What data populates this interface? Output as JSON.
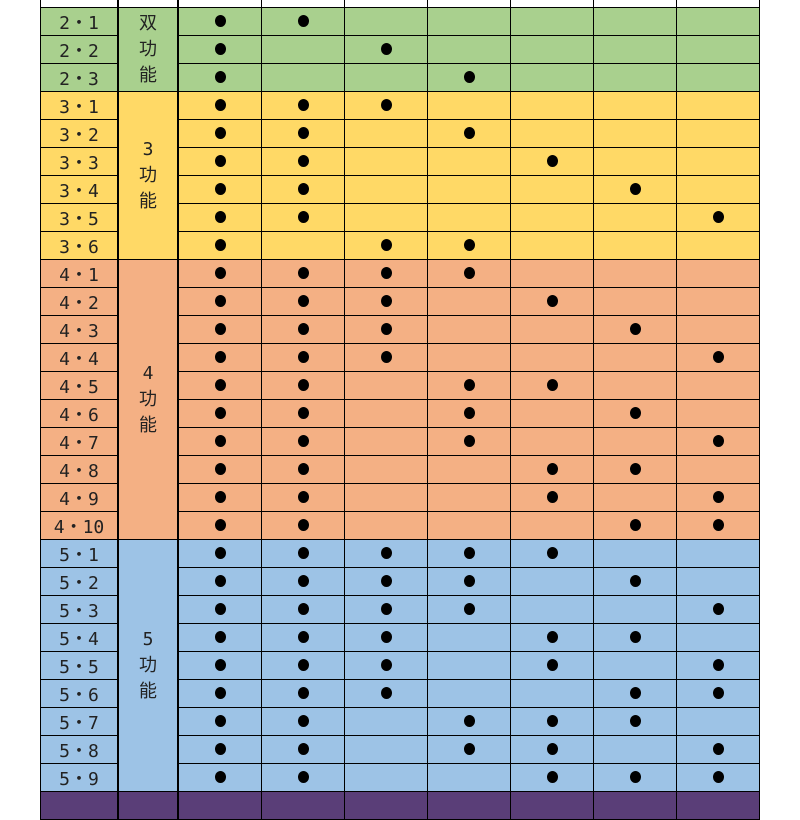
{
  "columns": 7,
  "groups": [
    {
      "label": "双\n功\n能",
      "color": "#a9d08e",
      "rows": [
        {
          "code": "2・1",
          "marks": [
            1,
            2
          ]
        },
        {
          "code": "2・2",
          "marks": [
            1,
            3
          ]
        },
        {
          "code": "2・3",
          "marks": [
            1,
            4
          ]
        }
      ]
    },
    {
      "label": "3\n功\n能",
      "color": "#ffd966",
      "rows": [
        {
          "code": "3・1",
          "marks": [
            1,
            2,
            3
          ]
        },
        {
          "code": "3・2",
          "marks": [
            1,
            2,
            4
          ]
        },
        {
          "code": "3・3",
          "marks": [
            1,
            2,
            5
          ]
        },
        {
          "code": "3・4",
          "marks": [
            1,
            2,
            6
          ]
        },
        {
          "code": "3・5",
          "marks": [
            1,
            2,
            7
          ]
        },
        {
          "code": "3・6",
          "marks": [
            1,
            3,
            4
          ]
        }
      ]
    },
    {
      "label": "4\n功\n能",
      "color": "#f4b084",
      "rows": [
        {
          "code": "4・1",
          "marks": [
            1,
            2,
            3,
            4
          ]
        },
        {
          "code": "4・2",
          "marks": [
            1,
            2,
            3,
            5
          ]
        },
        {
          "code": "4・3",
          "marks": [
            1,
            2,
            3,
            6
          ]
        },
        {
          "code": "4・4",
          "marks": [
            1,
            2,
            3,
            7
          ]
        },
        {
          "code": "4・5",
          "marks": [
            1,
            2,
            4,
            5
          ]
        },
        {
          "code": "4・6",
          "marks": [
            1,
            2,
            4,
            6
          ]
        },
        {
          "code": "4・7",
          "marks": [
            1,
            2,
            4,
            7
          ]
        },
        {
          "code": "4・8",
          "marks": [
            1,
            2,
            5,
            6
          ]
        },
        {
          "code": "4・9",
          "marks": [
            1,
            2,
            5,
            7
          ]
        },
        {
          "code": "4・10",
          "marks": [
            1,
            2,
            6,
            7
          ]
        }
      ]
    },
    {
      "label": "5\n功\n能",
      "color": "#9dc3e6",
      "rows": [
        {
          "code": "5・1",
          "marks": [
            1,
            2,
            3,
            4,
            5
          ]
        },
        {
          "code": "5・2",
          "marks": [
            1,
            2,
            3,
            4,
            6
          ]
        },
        {
          "code": "5・3",
          "marks": [
            1,
            2,
            3,
            4,
            7
          ]
        },
        {
          "code": "5・4",
          "marks": [
            1,
            2,
            3,
            5,
            6
          ]
        },
        {
          "code": "5・5",
          "marks": [
            1,
            2,
            3,
            5,
            7
          ]
        },
        {
          "code": "5・6",
          "marks": [
            1,
            2,
            3,
            6,
            7
          ]
        },
        {
          "code": "5・7",
          "marks": [
            1,
            2,
            4,
            5,
            6
          ]
        },
        {
          "code": "5・8",
          "marks": [
            1,
            2,
            4,
            5,
            7
          ]
        },
        {
          "code": "5・9",
          "marks": [
            1,
            2,
            5,
            6,
            7
          ]
        }
      ]
    }
  ],
  "footer_color": "#5a3e78"
}
